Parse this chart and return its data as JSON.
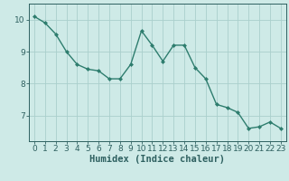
{
  "x": [
    0,
    1,
    2,
    3,
    4,
    5,
    6,
    7,
    8,
    9,
    10,
    11,
    12,
    13,
    14,
    15,
    16,
    17,
    18,
    19,
    20,
    21,
    22,
    23
  ],
  "y": [
    10.1,
    9.9,
    9.55,
    9.0,
    8.6,
    8.45,
    8.4,
    8.15,
    8.15,
    8.6,
    9.65,
    9.2,
    8.7,
    9.2,
    9.2,
    8.5,
    8.15,
    7.35,
    7.25,
    7.1,
    6.6,
    6.65,
    6.8,
    6.6
  ],
  "line_color": "#2e7d6e",
  "marker": "D",
  "marker_size": 2.0,
  "line_width": 1.0,
  "bg_color": "#ceeae7",
  "grid_color": "#aacfcc",
  "axis_color": "#2e6060",
  "xlabel": "Humidex (Indice chaleur)",
  "xlabel_fontsize": 7.5,
  "yticks": [
    7,
    8,
    9,
    10
  ],
  "xticks": [
    0,
    1,
    2,
    3,
    4,
    5,
    6,
    7,
    8,
    9,
    10,
    11,
    12,
    13,
    14,
    15,
    16,
    17,
    18,
    19,
    20,
    21,
    22,
    23
  ],
  "ylim": [
    6.2,
    10.5
  ],
  "xlim": [
    -0.5,
    23.5
  ],
  "tick_fontsize": 6.5
}
